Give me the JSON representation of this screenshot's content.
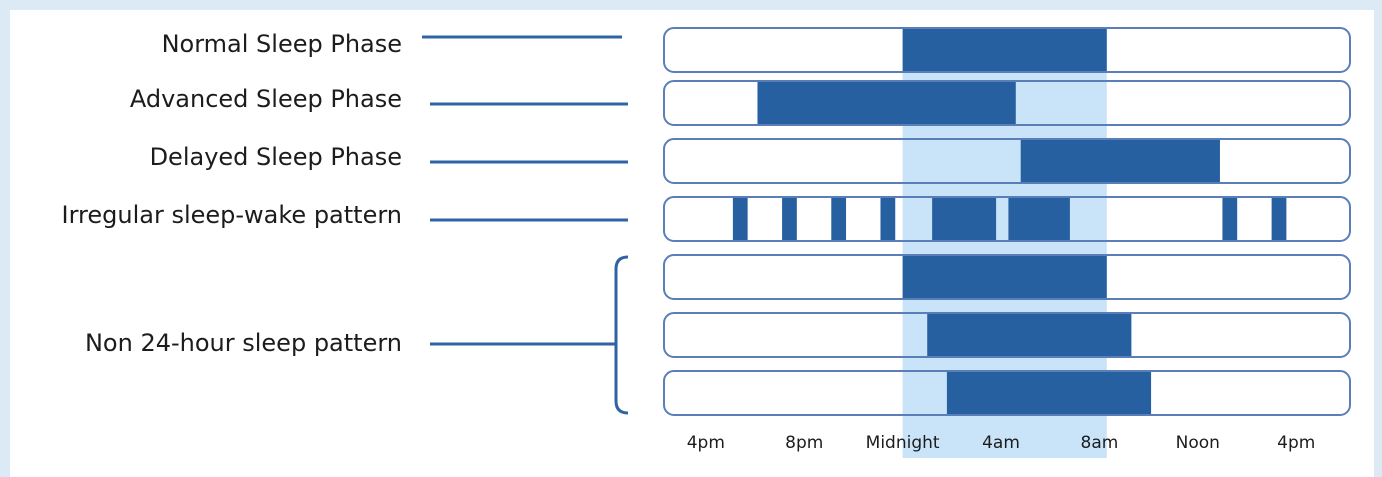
{
  "chart_data": {
    "type": "table",
    "title": "",
    "x_axis": {
      "range_hours": [
        14,
        38
      ],
      "ticks": [
        {
          "hour": 16,
          "label": "4pm"
        },
        {
          "hour": 20,
          "label": "8pm"
        },
        {
          "hour": 24,
          "label": "Midnight"
        },
        {
          "hour": 28,
          "label": "4am"
        },
        {
          "hour": 32,
          "label": "8am"
        },
        {
          "hour": 36,
          "label": "Noon"
        },
        {
          "hour": 40,
          "label": "4pm"
        }
      ]
    },
    "reference_band": {
      "start_hour": 24,
      "end_hour": 32.3
    },
    "rows": [
      {
        "label": "Normal Sleep Phase",
        "sleep": [
          [
            24,
            32.3
          ]
        ]
      },
      {
        "label": "Advanced Sleep Phase",
        "sleep": [
          [
            18.1,
            28.6
          ]
        ]
      },
      {
        "label": "Delayed Sleep Phase",
        "sleep": [
          [
            28.8,
            36.9
          ]
        ]
      },
      {
        "label": "Irregular sleep-wake pattern",
        "sleep": [
          [
            17.1,
            17.7
          ],
          [
            19.1,
            19.7
          ],
          [
            21.1,
            21.7
          ],
          [
            23.1,
            23.7
          ],
          [
            25.2,
            27.8
          ],
          [
            28.3,
            30.8
          ],
          [
            37,
            37.6
          ],
          [
            39,
            39.6
          ]
        ]
      },
      {
        "label": "Non 24-hour sleep pattern",
        "group": true,
        "rows": [
          {
            "sleep": [
              [
                24,
                32.3
              ]
            ]
          },
          {
            "sleep": [
              [
                25,
                33.3
              ]
            ]
          },
          {
            "sleep": [
              [
                25.8,
                34.1
              ]
            ]
          }
        ]
      }
    ],
    "colors": {
      "sleep": "#2760a0",
      "band": "#c9e4f8",
      "outline": "#5a7fb8",
      "connector": "#2f63a6",
      "text": "#1c1c1c",
      "background": "#ffffff"
    }
  }
}
